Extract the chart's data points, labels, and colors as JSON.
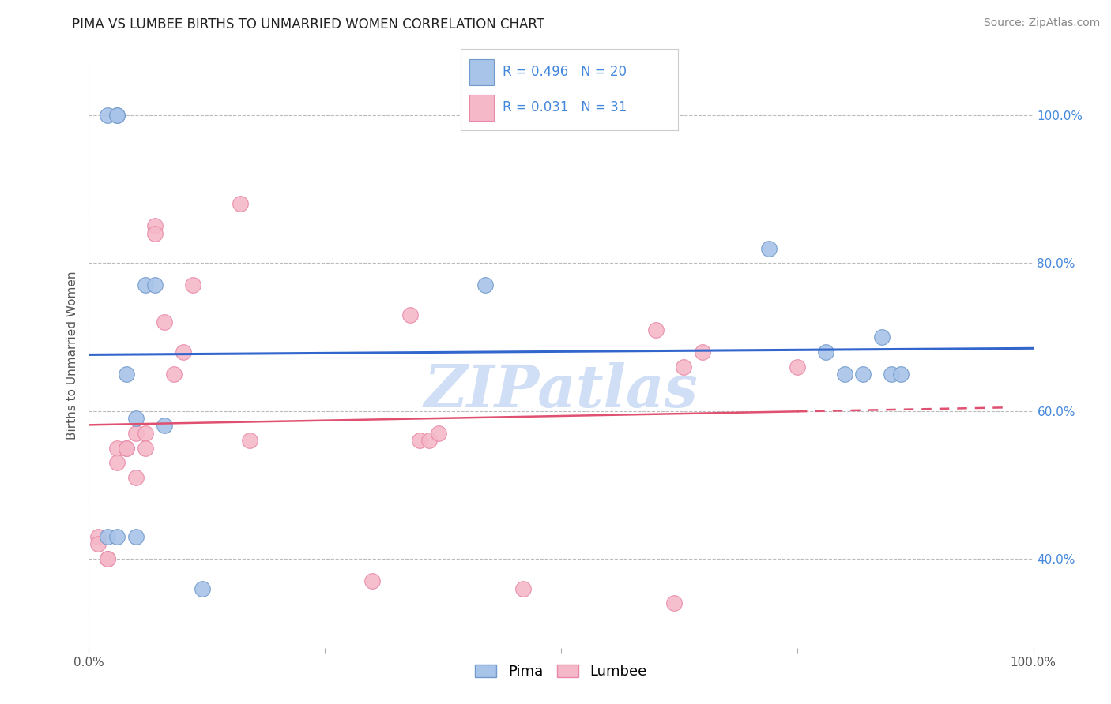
{
  "title": "PIMA VS LUMBEE BIRTHS TO UNMARRIED WOMEN CORRELATION CHART",
  "source": "Source: ZipAtlas.com",
  "ylabel": "Births to Unmarried Women",
  "xlim": [
    0.0,
    1.0
  ],
  "ylim": [
    0.28,
    1.07
  ],
  "ytick_positions": [
    0.4,
    0.6,
    0.8,
    1.0
  ],
  "ytick_labels": [
    "40.0%",
    "60.0%",
    "80.0%",
    "100.0%"
  ],
  "pima_color": "#a8c4e8",
  "lumbee_color": "#f5b8c8",
  "pima_edge_color": "#7099cc",
  "lumbee_edge_color": "#e888a8",
  "trend_pima_color": "#3366cc",
  "trend_lumbee_color": "#e05070",
  "grid_color": "#bbbbbb",
  "watermark_text": "ZIPatlas",
  "watermark_color": "#d0dff5",
  "right_tick_color": "#4488dd",
  "R_pima": 0.496,
  "N_pima": 20,
  "R_lumbee": 0.031,
  "N_lumbee": 31,
  "pima_x": [
    0.02,
    0.03,
    0.03,
    0.04,
    0.05,
    0.06,
    0.07,
    0.08,
    0.02,
    0.03,
    0.05,
    0.12,
    0.42,
    0.72,
    0.78,
    0.8,
    0.82,
    0.84,
    0.85,
    0.86
  ],
  "pima_y": [
    1.0,
    1.0,
    1.0,
    0.65,
    0.59,
    0.77,
    0.77,
    0.58,
    0.43,
    0.43,
    0.43,
    0.36,
    0.77,
    0.82,
    0.68,
    0.65,
    0.65,
    0.7,
    0.65,
    0.65
  ],
  "lumbee_x": [
    0.01,
    0.01,
    0.02,
    0.02,
    0.03,
    0.03,
    0.04,
    0.04,
    0.05,
    0.05,
    0.06,
    0.06,
    0.07,
    0.07,
    0.08,
    0.09,
    0.1,
    0.11,
    0.16,
    0.17,
    0.3,
    0.34,
    0.35,
    0.36,
    0.37,
    0.46,
    0.6,
    0.62,
    0.63,
    0.65,
    0.75
  ],
  "lumbee_y": [
    0.43,
    0.42,
    0.4,
    0.4,
    0.55,
    0.53,
    0.55,
    0.55,
    0.57,
    0.51,
    0.57,
    0.55,
    0.85,
    0.84,
    0.72,
    0.65,
    0.68,
    0.77,
    0.88,
    0.56,
    0.37,
    0.73,
    0.56,
    0.56,
    0.57,
    0.36,
    0.71,
    0.34,
    0.66,
    0.68,
    0.66
  ],
  "background_color": "#ffffff",
  "title_fontsize": 12,
  "axis_label_fontsize": 11,
  "tick_fontsize": 11,
  "legend_fontsize": 13,
  "source_fontsize": 10,
  "marker_size": 200
}
